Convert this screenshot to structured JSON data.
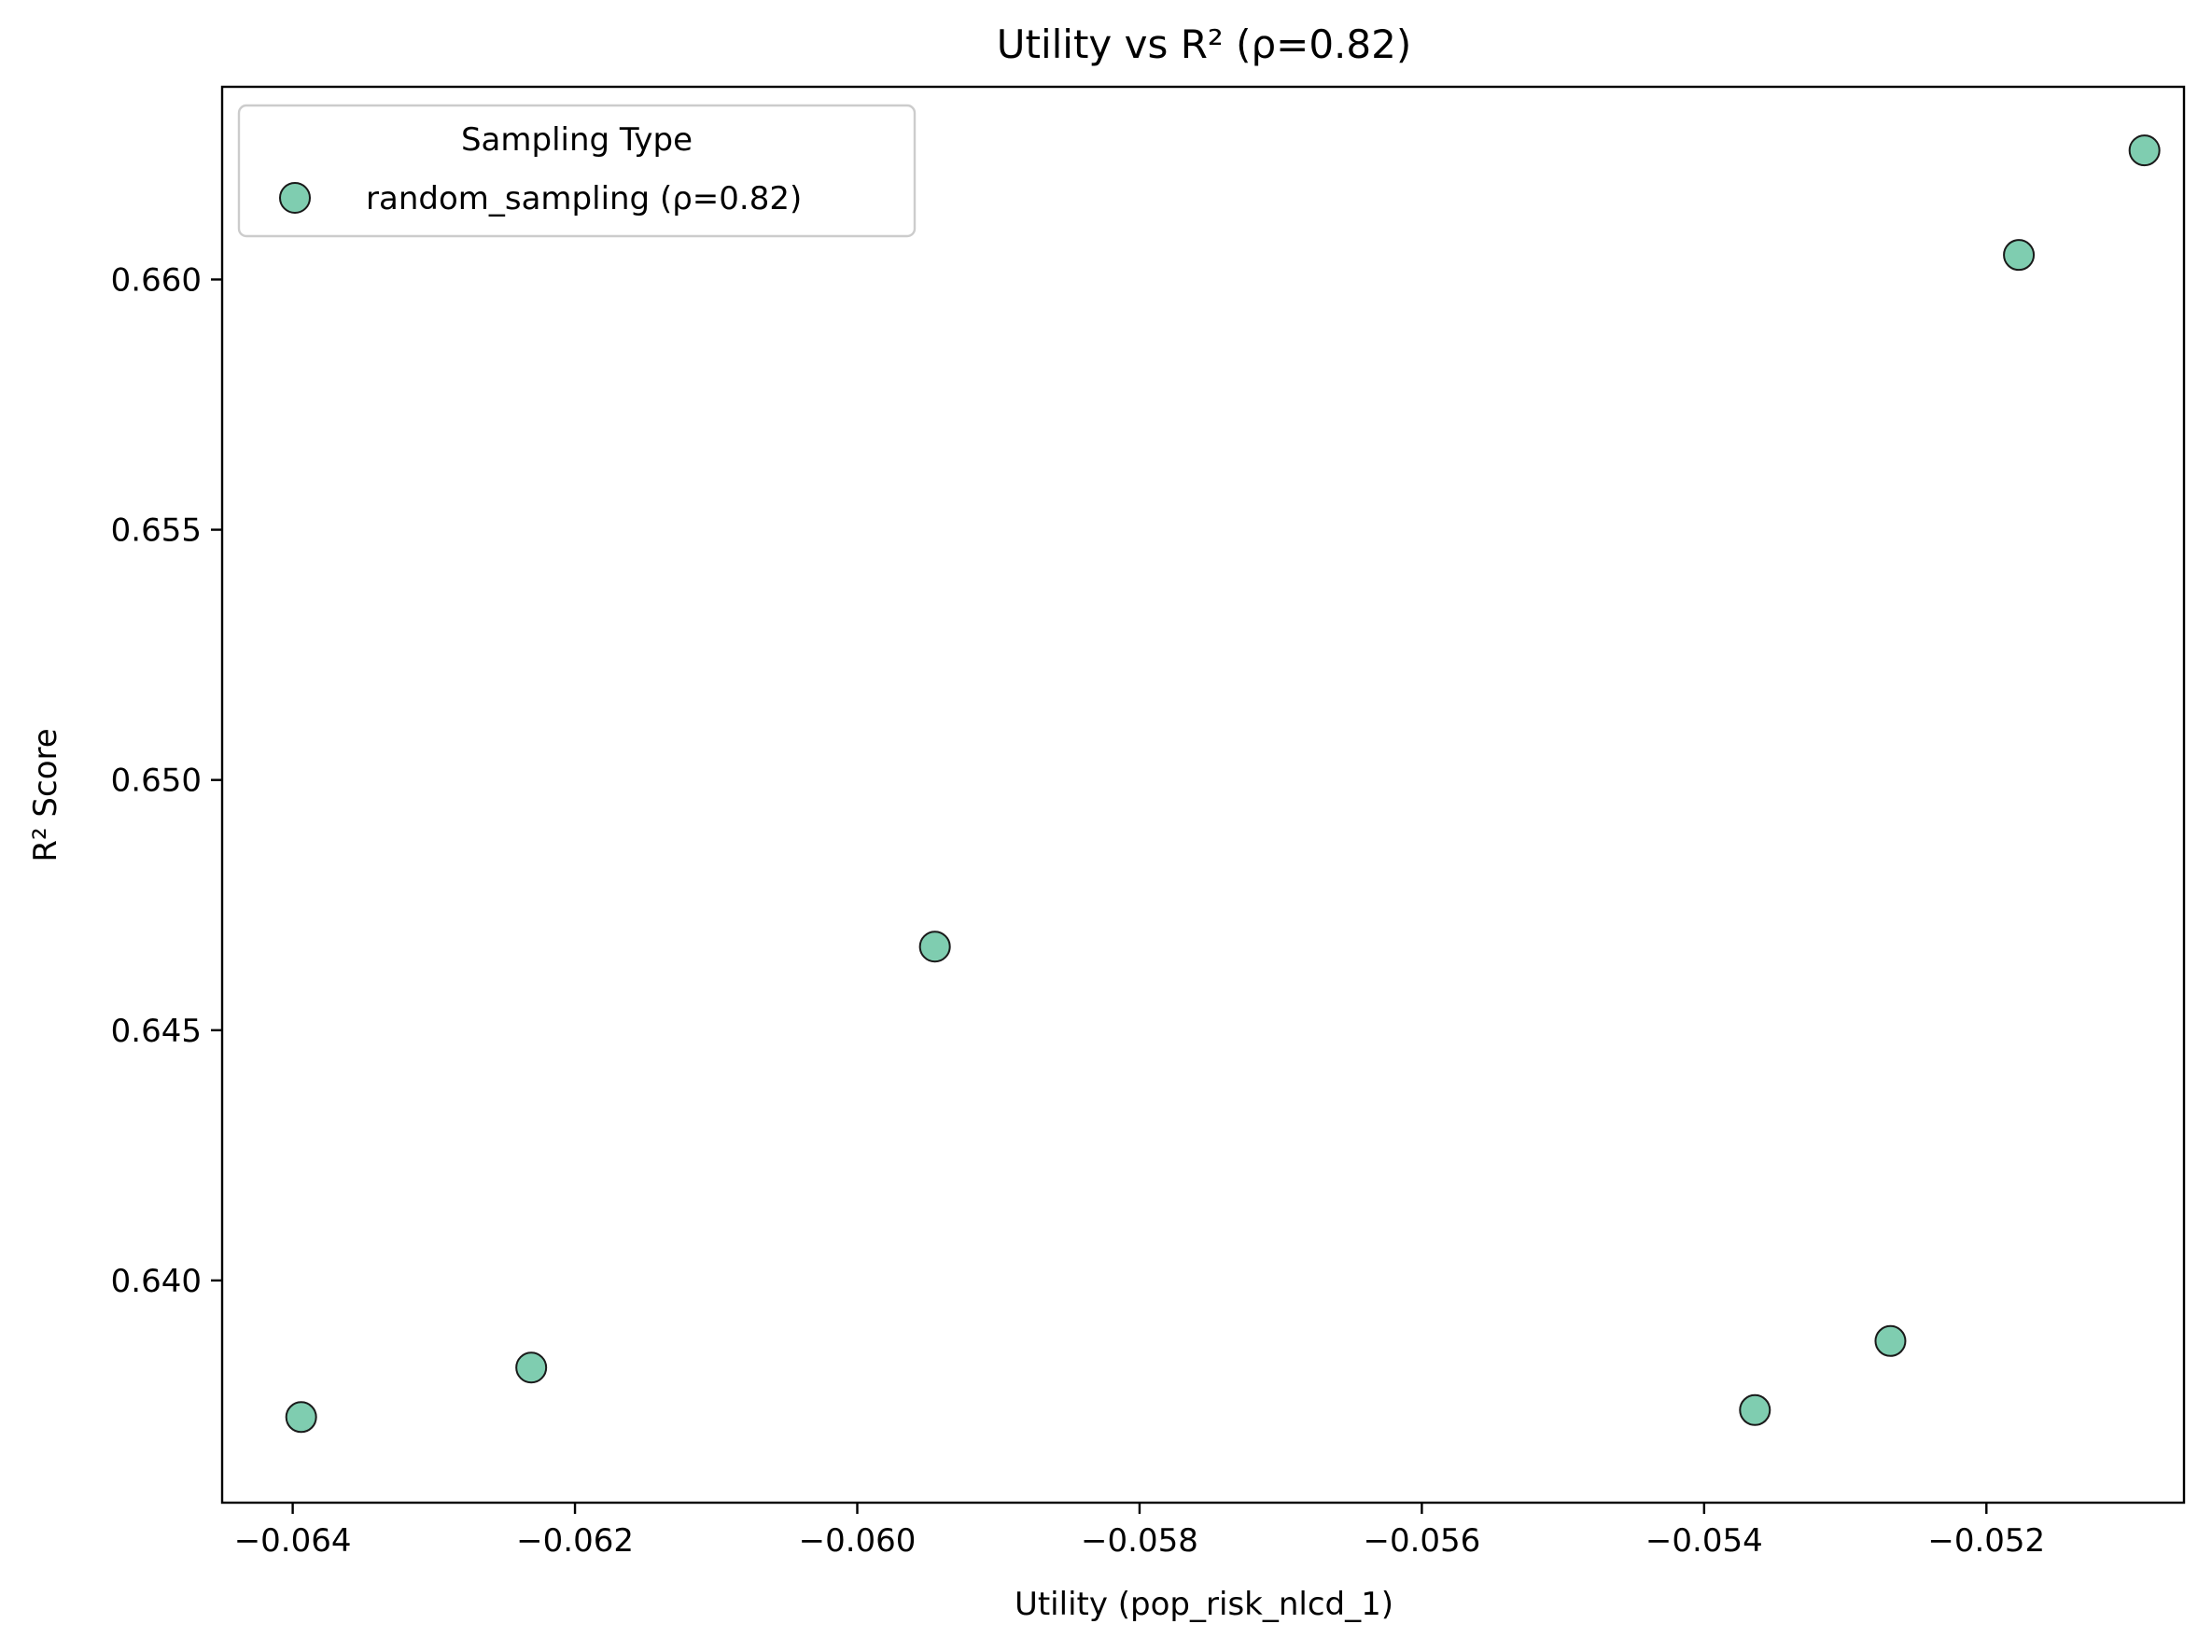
{
  "chart_data": {
    "type": "scatter",
    "title": "Utility vs R² (ρ=0.82)",
    "xlabel": "Utility (pop_risk_nlcd_1)",
    "ylabel": "R² Score",
    "xlim": [
      -0.0645,
      -0.0506
    ],
    "ylim": [
      0.63556,
      0.66385
    ],
    "xticks": [
      -0.064,
      -0.062,
      -0.06,
      -0.058,
      -0.056,
      -0.054,
      -0.052
    ],
    "xtick_labels": [
      "−0.064",
      "−0.062",
      "−0.060",
      "−0.058",
      "−0.056",
      "−0.054",
      "−0.052"
    ],
    "yticks": [
      0.64,
      0.645,
      0.65,
      0.655,
      0.66
    ],
    "ytick_labels": [
      "0.640",
      "0.645",
      "0.650",
      "0.655",
      "0.660"
    ],
    "grid": false,
    "legend": {
      "title": "Sampling Type",
      "position": "top-left"
    },
    "series": [
      {
        "name": "random_sampling (ρ=0.82)",
        "color": "#7fcdb0",
        "edgecolor": "#1a1a1a",
        "points": [
          {
            "x": -0.06394,
            "y": 0.63727
          },
          {
            "x": -0.06231,
            "y": 0.63826
          },
          {
            "x": -0.05945,
            "y": 0.64667
          },
          {
            "x": -0.05364,
            "y": 0.63741
          },
          {
            "x": -0.05268,
            "y": 0.63879
          },
          {
            "x": -0.05177,
            "y": 0.66049
          },
          {
            "x": -0.05088,
            "y": 0.66258
          }
        ]
      }
    ]
  }
}
